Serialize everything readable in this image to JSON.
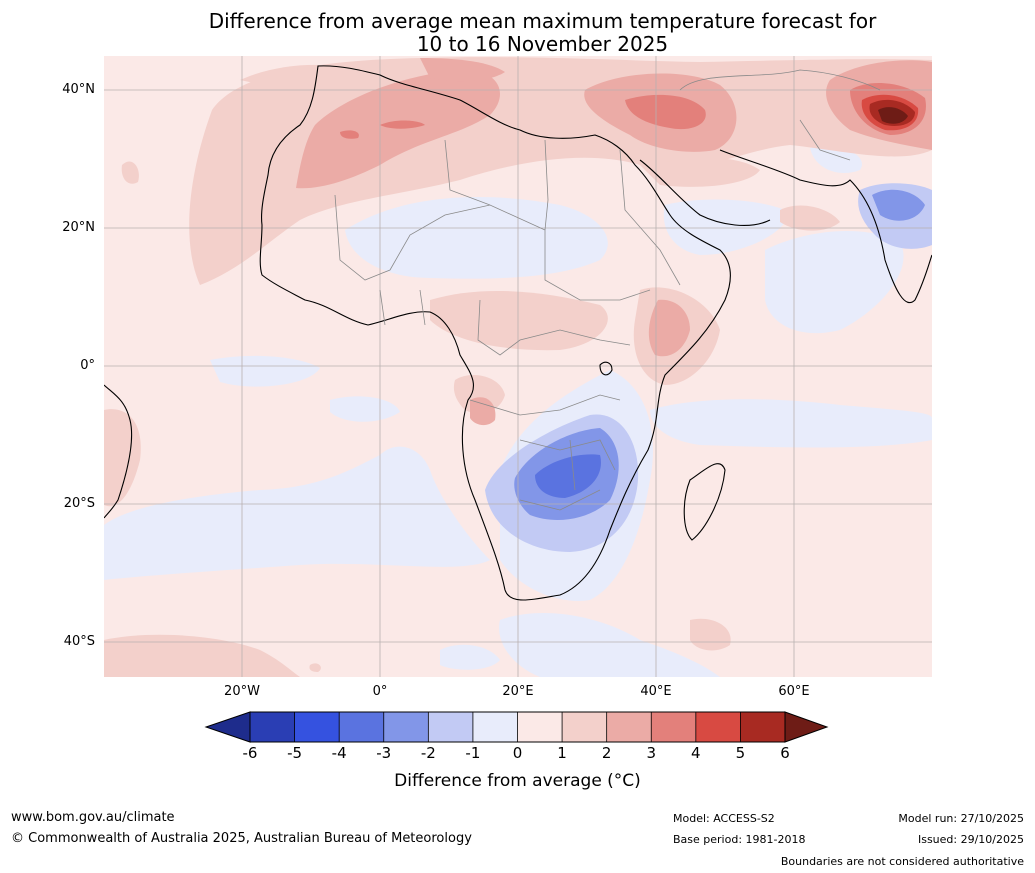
{
  "title": {
    "line1": "Difference from average mean maximum temperature forecast for",
    "line2": "10 to 16 November 2025"
  },
  "map": {
    "region": "Africa",
    "lat_labels": [
      "40°N",
      "20°N",
      "0°",
      "20°S",
      "40°S"
    ],
    "lon_labels": [
      "20°W",
      "0°",
      "20°E",
      "40°E",
      "60°E"
    ]
  },
  "colorbar": {
    "ticks": [
      "-6",
      "-5",
      "-4",
      "-3",
      "-2",
      "-1",
      "0",
      "1",
      "2",
      "3",
      "4",
      "5",
      "6"
    ],
    "colors": [
      "#1e2c8c",
      "#2a3eb4",
      "#3552e0",
      "#5a73e0",
      "#8296e8",
      "#c2caf4",
      "#e8ecfb",
      "#fbe9e7",
      "#f3d0cb",
      "#ebaba6",
      "#e3807b",
      "#d84a42",
      "#a82a22",
      "#6e1c16"
    ],
    "label": "Difference from average (°C)"
  },
  "footer": {
    "url": "www.bom.gov.au/climate",
    "copyright": "© Commonwealth of Australia 2025, Australian Bureau of Meteorology",
    "model": "Model: ACCESS-S2",
    "base_period": "Base period: 1981-2018",
    "model_run": "Model run: 27/10/2025",
    "issued": "Issued: 29/10/2025",
    "disclaimer": "Boundaries are not considered authoritative"
  }
}
